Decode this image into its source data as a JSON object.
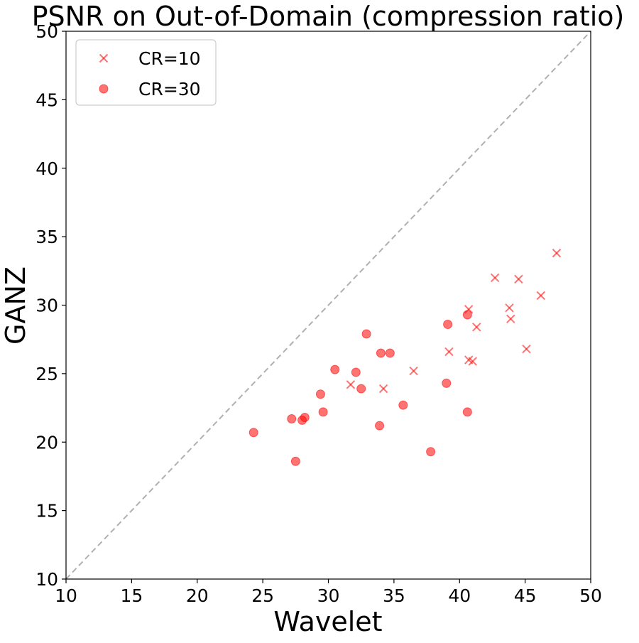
{
  "chart_data": {
    "type": "scatter",
    "title": "PSNR on Out-of-Domain (compression ratio)",
    "xlabel": "Wavelet",
    "ylabel": "GANZ",
    "xlim": [
      10,
      50
    ],
    "ylim": [
      10,
      50
    ],
    "xticks": [
      10,
      15,
      20,
      25,
      30,
      35,
      40,
      45,
      50
    ],
    "yticks": [
      10,
      15,
      20,
      25,
      30,
      35,
      40,
      45,
      50
    ],
    "grid": false,
    "legend_position": "top-left",
    "reference_line": "y = x",
    "colors": {
      "series": "#ff0000",
      "reference_line": "#b0b0b0"
    },
    "series": [
      {
        "name": "CR=10",
        "marker": "x",
        "points": [
          [
            31.7,
            24.2
          ],
          [
            34.2,
            23.9
          ],
          [
            36.5,
            25.2
          ],
          [
            39.2,
            26.6
          ],
          [
            40.7,
            29.7
          ],
          [
            40.7,
            26.0
          ],
          [
            41.0,
            25.9
          ],
          [
            41.3,
            28.4
          ],
          [
            42.7,
            32.0
          ],
          [
            43.8,
            29.8
          ],
          [
            43.9,
            29.0
          ],
          [
            44.5,
            31.9
          ],
          [
            45.1,
            26.8
          ],
          [
            46.2,
            30.7
          ],
          [
            47.4,
            33.8
          ]
        ]
      },
      {
        "name": "CR=30",
        "marker": "circle",
        "points": [
          [
            24.3,
            20.7
          ],
          [
            27.2,
            21.7
          ],
          [
            27.5,
            18.6
          ],
          [
            28.0,
            21.6
          ],
          [
            28.2,
            21.8
          ],
          [
            29.4,
            23.5
          ],
          [
            29.6,
            22.2
          ],
          [
            30.5,
            25.3
          ],
          [
            32.1,
            25.1
          ],
          [
            32.5,
            23.9
          ],
          [
            32.9,
            27.9
          ],
          [
            33.9,
            21.2
          ],
          [
            34.0,
            26.5
          ],
          [
            34.7,
            26.5
          ],
          [
            35.7,
            22.7
          ],
          [
            37.8,
            19.3
          ],
          [
            39.0,
            24.3
          ],
          [
            39.1,
            28.6
          ],
          [
            40.6,
            29.3
          ],
          [
            40.6,
            22.2
          ]
        ]
      }
    ]
  }
}
